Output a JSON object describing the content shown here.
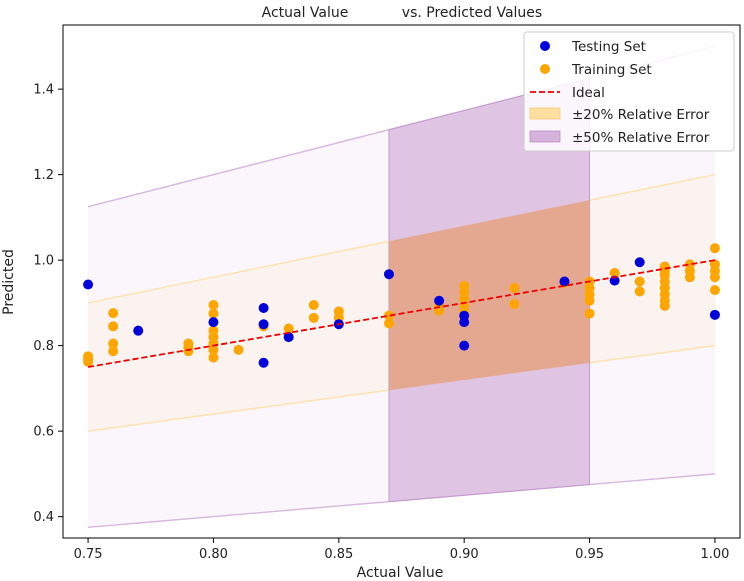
{
  "chart_data": {
    "type": "scatter",
    "title": "Actual Value vs. Predicted Values",
    "title_parts": [
      "Actual Value",
      "vs. Predicted Values"
    ],
    "xlabel": "Actual Value",
    "ylabel": "Predicted",
    "xlim": [
      0.74,
      1.01
    ],
    "ylim": [
      0.35,
      1.55
    ],
    "xticks": [
      0.75,
      0.8,
      0.85,
      0.9,
      0.95,
      1.0
    ],
    "xtick_labels": [
      "0.75",
      "0.80",
      "0.85",
      "0.90",
      "0.95",
      "1.00"
    ],
    "yticks": [
      0.4,
      0.6,
      0.8,
      1.0,
      1.2,
      1.4
    ],
    "ytick_labels": [
      "0.4",
      "0.6",
      "0.8",
      "1.0",
      "1.2",
      "1.4"
    ],
    "grid": false,
    "legend_position": "top-right",
    "colors": {
      "testing": "#0000dd",
      "training": "#ffa500",
      "ideal": "#ee0000",
      "band20": "#ffdfa0",
      "band50": "#d5b3dc"
    },
    "legend": [
      {
        "label": "Testing Set",
        "kind": "marker",
        "color": "#0000dd"
      },
      {
        "label": "Training Set",
        "kind": "marker",
        "color": "#ffa500"
      },
      {
        "label": "Ideal",
        "kind": "dashed-line",
        "color": "#ee0000"
      },
      {
        "label": "±20% Relative Error",
        "kind": "patch",
        "color": "#ffdfa0"
      },
      {
        "label": "±50% Relative Error",
        "kind": "patch",
        "color": "#d5b3dc"
      }
    ],
    "ideal_line": {
      "x": [
        0.75,
        1.0
      ],
      "y": [
        0.75,
        1.0
      ]
    },
    "band_20": {
      "x": [
        0.75,
        1.0
      ],
      "lower_factor": 0.8,
      "upper_factor": 1.2
    },
    "band_50": {
      "x": [
        0.75,
        1.0
      ],
      "lower_factor": 0.5,
      "upper_factor": 1.5
    },
    "shaded_region": {
      "x": [
        0.87,
        0.95
      ]
    },
    "series": [
      {
        "name": "Testing Set",
        "color": "#0000dd",
        "points": [
          [
            0.75,
            0.943
          ],
          [
            0.77,
            0.835
          ],
          [
            0.8,
            0.855
          ],
          [
            0.82,
            0.888
          ],
          [
            0.82,
            0.85
          ],
          [
            0.82,
            0.76
          ],
          [
            0.83,
            0.82
          ],
          [
            0.85,
            0.85
          ],
          [
            0.87,
            0.967
          ],
          [
            0.89,
            0.905
          ],
          [
            0.9,
            0.87
          ],
          [
            0.9,
            0.855
          ],
          [
            0.9,
            0.8
          ],
          [
            0.94,
            0.95
          ],
          [
            0.96,
            0.952
          ],
          [
            0.97,
            0.995
          ],
          [
            1.0,
            0.872
          ]
        ]
      },
      {
        "name": "Training Set",
        "color": "#ffa500",
        "points": [
          [
            0.75,
            0.775
          ],
          [
            0.75,
            0.768
          ],
          [
            0.75,
            0.762
          ],
          [
            0.76,
            0.876
          ],
          [
            0.76,
            0.845
          ],
          [
            0.76,
            0.805
          ],
          [
            0.76,
            0.787
          ],
          [
            0.79,
            0.805
          ],
          [
            0.79,
            0.795
          ],
          [
            0.79,
            0.787
          ],
          [
            0.8,
            0.895
          ],
          [
            0.8,
            0.875
          ],
          [
            0.8,
            0.835
          ],
          [
            0.8,
            0.82
          ],
          [
            0.8,
            0.805
          ],
          [
            0.8,
            0.79
          ],
          [
            0.8,
            0.772
          ],
          [
            0.81,
            0.79
          ],
          [
            0.82,
            0.845
          ],
          [
            0.83,
            0.84
          ],
          [
            0.84,
            0.895
          ],
          [
            0.84,
            0.865
          ],
          [
            0.85,
            0.88
          ],
          [
            0.85,
            0.865
          ],
          [
            0.87,
            0.87
          ],
          [
            0.87,
            0.852
          ],
          [
            0.89,
            0.895
          ],
          [
            0.89,
            0.882
          ],
          [
            0.9,
            0.94
          ],
          [
            0.9,
            0.925
          ],
          [
            0.9,
            0.91
          ],
          [
            0.9,
            0.895
          ],
          [
            0.9,
            0.88
          ],
          [
            0.92,
            0.935
          ],
          [
            0.92,
            0.897
          ],
          [
            0.94,
            0.947
          ],
          [
            0.95,
            0.95
          ],
          [
            0.95,
            0.935
          ],
          [
            0.95,
            0.92
          ],
          [
            0.95,
            0.905
          ],
          [
            0.95,
            0.875
          ],
          [
            0.96,
            0.97
          ],
          [
            0.97,
            0.95
          ],
          [
            0.97,
            0.927
          ],
          [
            0.98,
            0.985
          ],
          [
            0.98,
            0.975
          ],
          [
            0.98,
            0.965
          ],
          [
            0.98,
            0.95
          ],
          [
            0.98,
            0.935
          ],
          [
            0.98,
            0.92
          ],
          [
            0.98,
            0.905
          ],
          [
            0.98,
            0.893
          ],
          [
            0.99,
            0.99
          ],
          [
            0.99,
            0.975
          ],
          [
            0.99,
            0.96
          ],
          [
            1.0,
            1.028
          ],
          [
            1.0,
            0.99
          ],
          [
            1.0,
            0.975
          ],
          [
            1.0,
            0.96
          ],
          [
            1.0,
            0.93
          ]
        ]
      }
    ]
  }
}
